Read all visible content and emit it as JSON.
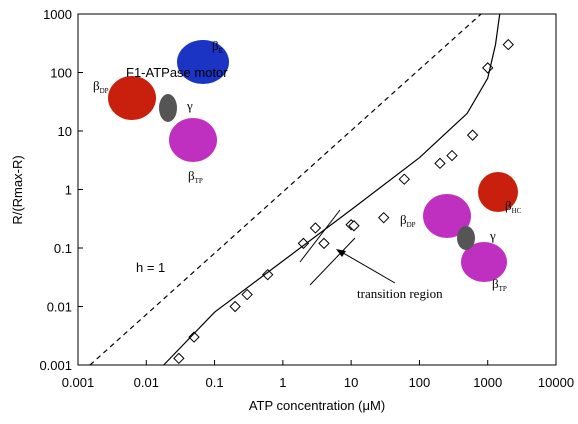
{
  "chart_data": {
    "type": "scatter",
    "xlabel": "ATP concentration (μM)",
    "ylabel": "R/(Rmax-R)",
    "xscale": "log",
    "yscale": "log",
    "xlim": [
      0.001,
      10000
    ],
    "ylim": [
      0.001,
      1000
    ],
    "xticks": [
      0.001,
      0.01,
      0.1,
      1,
      10,
      100,
      1000,
      10000
    ],
    "yticks": [
      0.001,
      0.01,
      0.1,
      1,
      10,
      100,
      1000
    ],
    "series": [
      {
        "type": "scatter",
        "color": "#000000",
        "x": [
          0.03,
          0.05,
          0.2,
          0.3,
          0.6,
          2,
          3,
          4,
          10,
          11,
          30,
          60,
          200,
          300,
          600,
          1000,
          2000
        ],
        "values": [
          0.0013,
          0.003,
          0.01,
          0.016,
          0.035,
          0.12,
          0.22,
          0.12,
          0.25,
          0.24,
          0.33,
          1.5,
          2.8,
          3.8,
          8.5,
          120,
          300
        ]
      },
      {
        "type": "line",
        "dashed": true,
        "color": "#000000",
        "x": [
          0.0015,
          800
        ],
        "values": [
          0.001,
          1000
        ]
      },
      {
        "type": "line",
        "dashed": false,
        "color": "#000000",
        "x": [
          0.018,
          0.1,
          1,
          10,
          100,
          500,
          1000,
          1300,
          1500
        ],
        "values": [
          0.001,
          0.008,
          0.06,
          0.45,
          3.5,
          20,
          80,
          300,
          1000
        ]
      }
    ],
    "annotations": [
      {
        "text": "F1-ATPase motor"
      },
      {
        "text": "h = 1"
      },
      {
        "text": "transition region"
      },
      {
        "text": "β",
        "sub": "E"
      },
      {
        "text": "β",
        "sub": "DP"
      },
      {
        "text": "β",
        "sub": "TP"
      },
      {
        "text": "γ"
      },
      {
        "text": "β",
        "sub": "DP"
      },
      {
        "text": "β",
        "sub": "HC"
      },
      {
        "text": "γ"
      },
      {
        "text": "β",
        "sub": "TP"
      }
    ]
  }
}
